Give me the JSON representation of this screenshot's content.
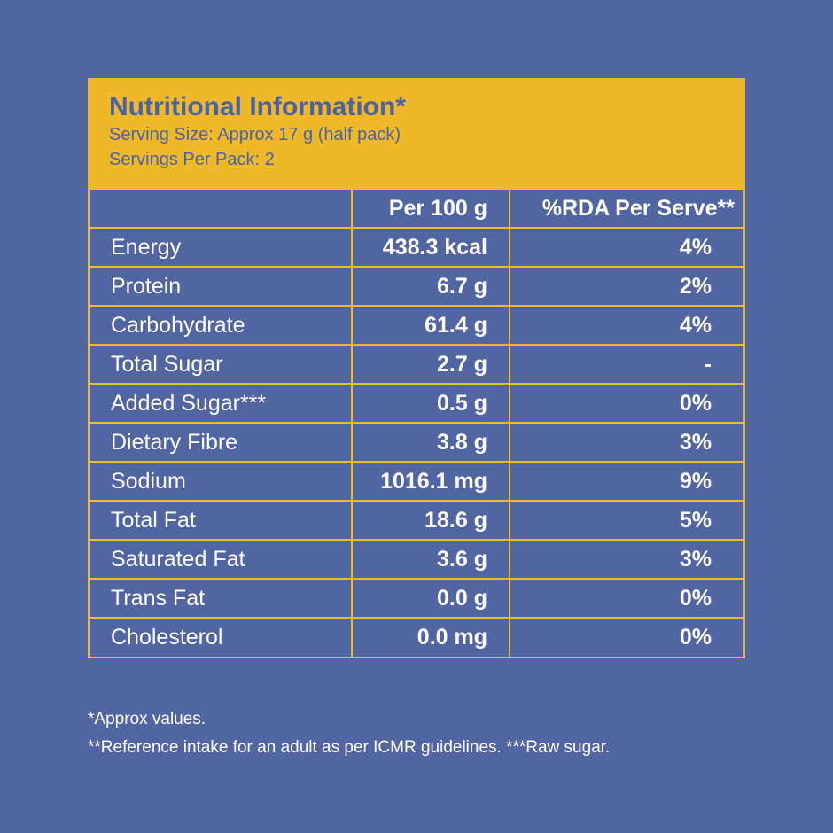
{
  "header": {
    "title": "Nutritional Information*",
    "serving_size": "Serving Size: Approx 17 g (half pack)",
    "servings_per_pack": "Servings Per Pack: 2"
  },
  "table": {
    "columns": [
      "",
      "Per 100 g",
      "%RDA Per Serve**"
    ],
    "rows": [
      {
        "nutrient": "Energy",
        "per100": "438.3 kcal",
        "rda": "4%"
      },
      {
        "nutrient": "Protein",
        "per100": "6.7 g",
        "rda": "2%"
      },
      {
        "nutrient": "Carbohydrate",
        "per100": "61.4 g",
        "rda": "4%"
      },
      {
        "nutrient": "Total Sugar",
        "per100": "2.7 g",
        "rda": "-"
      },
      {
        "nutrient": "Added Sugar***",
        "per100": "0.5 g",
        "rda": "0%"
      },
      {
        "nutrient": "Dietary Fibre",
        "per100": "3.8 g",
        "rda": "3%"
      },
      {
        "nutrient": "Sodium",
        "per100": "1016.1 mg",
        "rda": "9%"
      },
      {
        "nutrient": "Total Fat",
        "per100": "18.6 g",
        "rda": "5%"
      },
      {
        "nutrient": "Saturated Fat",
        "per100": "3.6 g",
        "rda": "3%"
      },
      {
        "nutrient": "Trans Fat",
        "per100": "0.0 g",
        "rda": "0%"
      },
      {
        "nutrient": "Cholesterol",
        "per100": "0.0 mg",
        "rda": "0%"
      }
    ]
  },
  "footnotes": [
    "*Approx values.",
    "**Reference intake for an adult as per ICMR guidelines. ***Raw sugar."
  ],
  "colors": {
    "background": "#5165a3",
    "accent": "#efb828"
  }
}
